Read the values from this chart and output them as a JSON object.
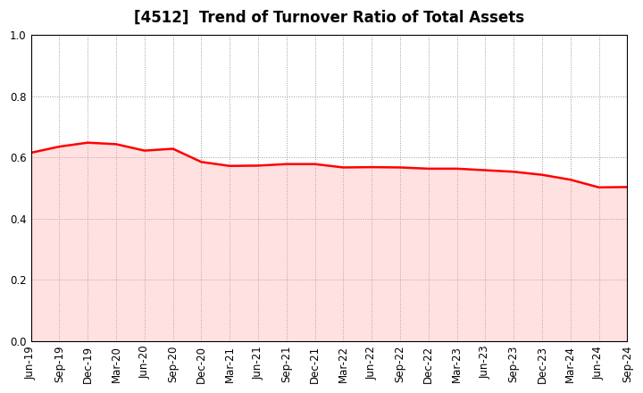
{
  "title": "[4512]  Trend of Turnover Ratio of Total Assets",
  "title_fontsize": 12,
  "line_color": "#FF0000",
  "line_width": 1.8,
  "background_color": "#FFFFFF",
  "plot_bg_color": "#FFFFFF",
  "ylim": [
    0.0,
    1.0
  ],
  "yticks": [
    0.0,
    0.2,
    0.4,
    0.6,
    0.8,
    1.0
  ],
  "x_labels": [
    "Jun-19",
    "Sep-19",
    "Dec-19",
    "Mar-20",
    "Jun-20",
    "Sep-20",
    "Dec-20",
    "Mar-21",
    "Jun-21",
    "Sep-21",
    "Dec-21",
    "Mar-22",
    "Jun-22",
    "Sep-22",
    "Dec-22",
    "Mar-23",
    "Jun-23",
    "Sep-23",
    "Dec-23",
    "Mar-24",
    "Jun-24",
    "Sep-24"
  ],
  "values": [
    0.615,
    0.635,
    0.648,
    0.643,
    0.622,
    0.628,
    0.585,
    0.572,
    0.573,
    0.578,
    0.578,
    0.567,
    0.568,
    0.567,
    0.563,
    0.563,
    0.558,
    0.553,
    0.543,
    0.527,
    0.502,
    0.503
  ],
  "grid_color": "#999999",
  "grid_linestyle": ":",
  "grid_linewidth": 0.7,
  "tick_fontsize": 8.5,
  "fill_color": "#FFAAAA",
  "fill_alpha": 0.35
}
